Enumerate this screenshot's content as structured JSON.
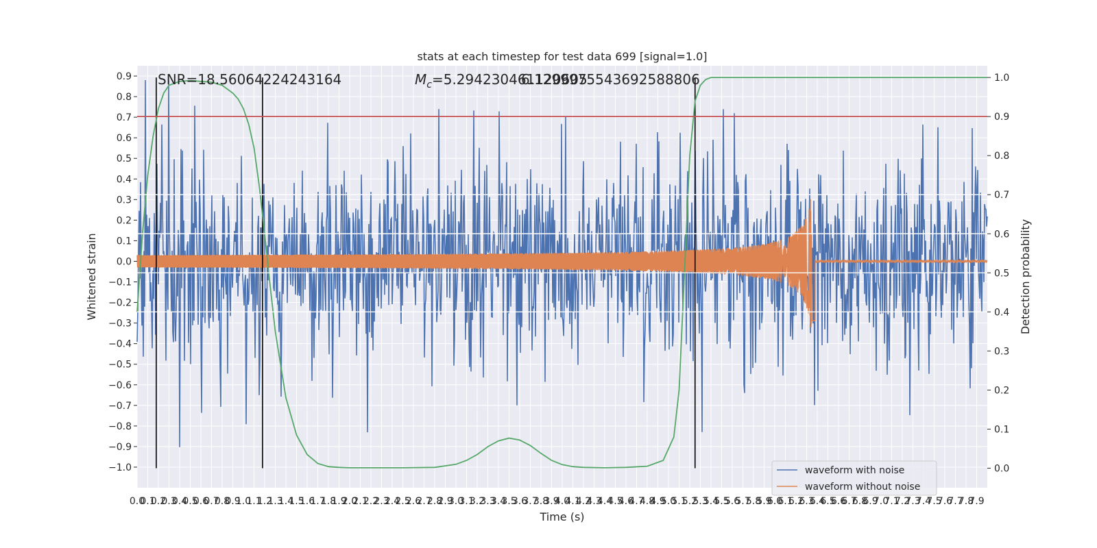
{
  "chart_data": {
    "type": "line",
    "title": "stats at each timestep for test data 699 [signal=1.0]",
    "xlabel": "Time (s)",
    "ylabel": "Whitened strain",
    "ylabel_right": "Detection probability",
    "xlim": [
      0.0,
      8.0
    ],
    "ylim": [
      -1.1,
      0.95
    ],
    "ylim_right": [
      -0.05,
      1.03
    ],
    "grid": true,
    "legend_position": "bottom-right",
    "x_ticks": [
      "0.0",
      "0.1",
      "0.2",
      "0.3",
      "0.4",
      "0.5",
      "0.6",
      "0.7",
      "0.8",
      "0.9",
      "1.0",
      "1.1",
      "1.2",
      "1.3",
      "1.4",
      "1.5",
      "1.6",
      "1.7",
      "1.8",
      "1.9",
      "2.0",
      "2.1",
      "2.2",
      "2.3",
      "2.4",
      "2.5",
      "2.6",
      "2.7",
      "2.8",
      "2.9",
      "3.0",
      "3.1",
      "3.2",
      "3.3",
      "3.4",
      "3.5",
      "3.6",
      "3.7",
      "3.8",
      "3.9",
      "4.0",
      "4.1",
      "4.2",
      "4.3",
      "4.4",
      "4.5",
      "4.6",
      "4.7",
      "4.8",
      "4.9",
      "5.0",
      "5.1",
      "5.2",
      "5.3",
      "5.4",
      "5.5",
      "5.6",
      "5.7",
      "5.8",
      "5.9",
      "6.0",
      "6.1",
      "6.2",
      "6.3",
      "6.4",
      "6.5",
      "6.6",
      "6.7",
      "6.8",
      "6.9",
      "7.0",
      "7.1",
      "7.2",
      "7.3",
      "7.4",
      "7.5",
      "7.6",
      "7.7",
      "7.8",
      "7.9"
    ],
    "y_ticks": [
      "0.9",
      "0.8",
      "0.7",
      "0.6",
      "0.5",
      "0.4",
      "0.3",
      "0.2",
      "0.1",
      "0.0",
      "−0.1",
      "−0.2",
      "−0.3",
      "−0.4",
      "−0.5",
      "−0.6",
      "−0.7",
      "−0.8",
      "−0.9",
      "−1.0"
    ],
    "y_tick_values": [
      0.9,
      0.8,
      0.7,
      0.6,
      0.5,
      0.4,
      0.3,
      0.2,
      0.1,
      0.0,
      -0.1,
      -0.2,
      -0.3,
      -0.4,
      -0.5,
      -0.6,
      -0.7,
      -0.8,
      -0.9,
      -1.0
    ],
    "y_right_ticks": [
      "1.0",
      "0.9",
      "0.8",
      "0.7",
      "0.6",
      "0.5",
      "0.4",
      "0.3",
      "0.2",
      "0.1",
      "0.0"
    ],
    "y_right_tick_values": [
      1.0,
      0.9,
      0.8,
      0.7,
      0.6,
      0.5,
      0.4,
      0.3,
      0.2,
      0.1,
      0.0
    ],
    "series": [
      {
        "name": "waveform with noise",
        "color": "#4c72b0",
        "description_values": {
          "typical_amplitude": 0.3,
          "max": 0.88,
          "min": -1.0
        }
      },
      {
        "name": "waveform without noise",
        "color": "#dd8452",
        "description_values": {
          "start_amplitude": 0.03,
          "peak_time": 6.35,
          "peak_max": 0.45,
          "peak_min": -0.37
        }
      },
      {
        "color": "#55a868",
        "axis": "right",
        "x": [
          0.0,
          0.05,
          0.1,
          0.15,
          0.2,
          0.25,
          0.3,
          0.4,
          0.5,
          0.6,
          0.7,
          0.8,
          0.9,
          0.95,
          1.0,
          1.05,
          1.1,
          1.15,
          1.2,
          1.25,
          1.3,
          1.4,
          1.5,
          1.6,
          1.7,
          1.8,
          1.9,
          2.0,
          2.2,
          2.5,
          2.8,
          3.0,
          3.1,
          3.2,
          3.3,
          3.4,
          3.5,
          3.6,
          3.7,
          3.8,
          3.9,
          4.0,
          4.1,
          4.2,
          4.4,
          4.6,
          4.8,
          4.95,
          5.05,
          5.1,
          5.15,
          5.2,
          5.25,
          5.3,
          5.35,
          5.4,
          5.5,
          5.7,
          6.0,
          7.0,
          8.0
        ],
        "y": [
          0.4,
          0.6,
          0.75,
          0.85,
          0.92,
          0.96,
          0.98,
          0.99,
          0.992,
          0.99,
          0.988,
          0.98,
          0.96,
          0.945,
          0.92,
          0.88,
          0.82,
          0.72,
          0.6,
          0.47,
          0.35,
          0.18,
          0.085,
          0.035,
          0.012,
          0.004,
          0.002,
          0.001,
          0.001,
          0.001,
          0.002,
          0.01,
          0.02,
          0.035,
          0.055,
          0.07,
          0.077,
          0.072,
          0.058,
          0.038,
          0.02,
          0.009,
          0.004,
          0.002,
          0.001,
          0.002,
          0.005,
          0.02,
          0.08,
          0.2,
          0.5,
          0.8,
          0.94,
          0.98,
          0.995,
          1.0,
          1.0,
          1.0,
          1.0,
          1.0,
          1.0
        ]
      }
    ],
    "threshold": {
      "axis": "right",
      "value": 0.9,
      "color": "#c44e52"
    },
    "vertical_lines": [
      0.18,
      1.18,
      5.25
    ],
    "annotations": [
      {
        "text": "SNR=18.56064224243164",
        "x": 0.18
      },
      {
        "text": "M_c=5.294230461120605",
        "x": 2.6
      },
      {
        "text": "6.1299975543692588806",
        "x": 3.7
      }
    ]
  },
  "legend": {
    "noise_label": "waveform with noise",
    "clean_label": "waveform without noise"
  },
  "annotations_text": {
    "snr": "SNR=18.56064224243164",
    "mc_symbol": "M",
    "mc_sub": "c",
    "mc_value": "=5.294230461120605",
    "overlap": "6.1299975543692588806"
  },
  "labels": {
    "title": "stats at each timestep for test data 699 [signal=1.0]",
    "xlabel": "Time (s)",
    "ylabel": "Whitened strain",
    "ylabel_right": "Detection probability"
  }
}
